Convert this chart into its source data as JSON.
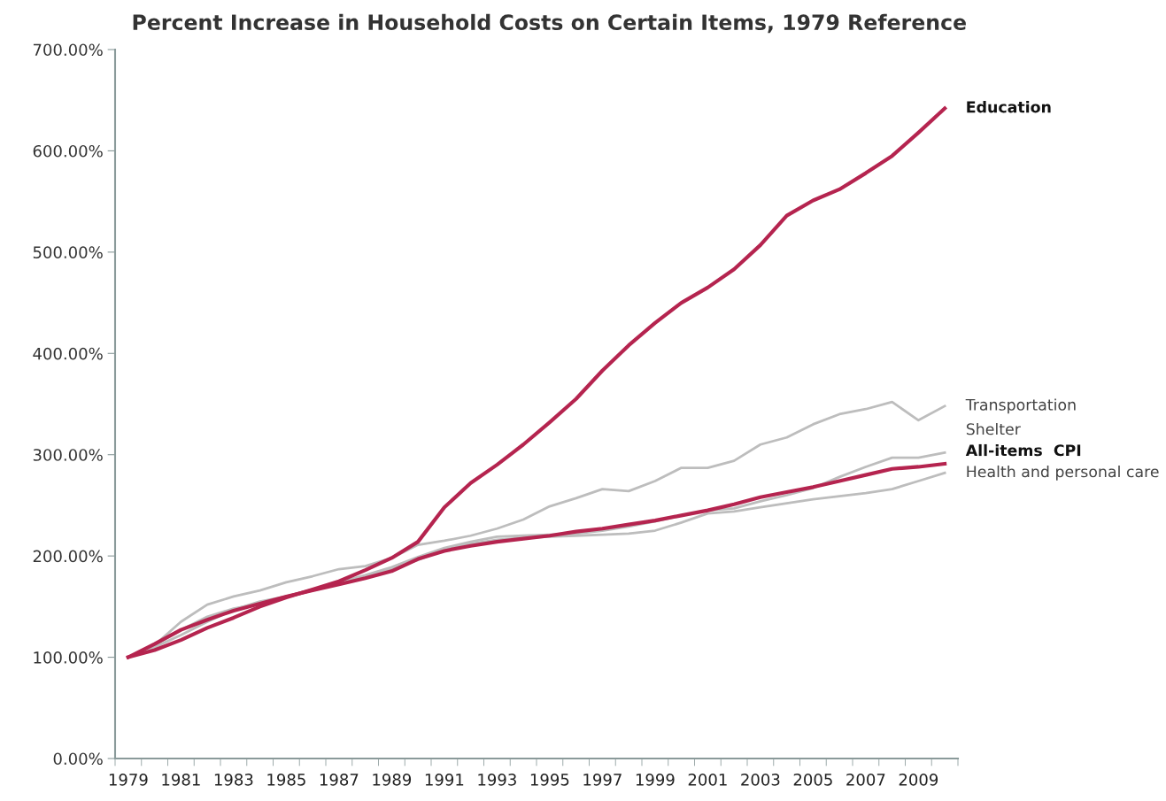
{
  "chart_data": {
    "type": "line",
    "title": "Percent Increase in Household Costs on Certain Items, 1979 Reference",
    "categories": [
      "1979",
      null,
      "1981",
      null,
      "1983",
      null,
      "1985",
      null,
      "1987",
      null,
      "1989",
      null,
      "1991",
      null,
      "1993",
      null,
      "1995",
      null,
      "1997",
      null,
      "1999",
      null,
      "2001",
      null,
      "2003",
      null,
      "2005",
      null,
      "2007",
      null,
      "2009",
      null
    ],
    "ylim": [
      0,
      700
    ],
    "yticks": [
      {
        "value": 0,
        "label": "0.00%"
      },
      {
        "value": 100,
        "label": "100.00%"
      },
      {
        "value": 200,
        "label": "200.00%"
      },
      {
        "value": 300,
        "label": "300.00%"
      },
      {
        "value": 400,
        "label": "400.00%"
      },
      {
        "value": 500,
        "label": "500.00%"
      },
      {
        "value": 600,
        "label": "600.00%"
      },
      {
        "value": 700,
        "label": "700.00%"
      }
    ],
    "grid": false,
    "legend": false,
    "marker": "none",
    "line_style": "solid",
    "series": [
      {
        "name": "Transportation",
        "color": "#bdbdbd",
        "values": [
          100,
          112,
          135,
          152,
          160,
          166,
          174,
          180,
          187,
          190,
          198,
          211,
          215,
          220,
          227,
          236,
          249,
          257,
          266,
          264,
          274,
          287,
          287,
          294,
          310,
          317,
          330,
          340,
          345,
          352,
          334,
          348
        ]
      },
      {
        "name": "Shelter",
        "color": "#bdbdbd",
        "values": [
          100,
          112,
          127,
          140,
          148,
          153,
          160,
          167,
          174,
          181,
          189,
          199,
          208,
          214,
          219,
          220,
          221,
          222,
          225,
          229,
          234,
          240,
          245,
          247,
          254,
          260,
          267,
          278,
          288,
          297,
          297,
          302
        ]
      },
      {
        "name": "Health and personal care",
        "color": "#bdbdbd",
        "values": [
          100,
          110,
          122,
          135,
          147,
          155,
          160,
          166,
          173,
          180,
          187,
          196,
          206,
          212,
          216,
          218,
          219,
          220,
          221,
          222,
          225,
          233,
          242,
          244,
          248,
          252,
          256,
          259,
          262,
          266,
          274,
          282
        ]
      },
      {
        "name": "All-items  CPI",
        "color": "#b5244f",
        "values": [
          100,
          113,
          127,
          137,
          146,
          153,
          160,
          166,
          172,
          178,
          185,
          197,
          205,
          210,
          214,
          217,
          220,
          224,
          227,
          231,
          235,
          240,
          245,
          251,
          258,
          263,
          268,
          274,
          280,
          286,
          288,
          291
        ]
      },
      {
        "name": "Education",
        "color": "#b5244f",
        "values": [
          100,
          107,
          117,
          129,
          139,
          150,
          159,
          167,
          175,
          186,
          198,
          214,
          248,
          272,
          290,
          310,
          332,
          355,
          383,
          408,
          430,
          450,
          465,
          483,
          507,
          536,
          551,
          562,
          578,
          595,
          618,
          642
        ]
      }
    ]
  }
}
